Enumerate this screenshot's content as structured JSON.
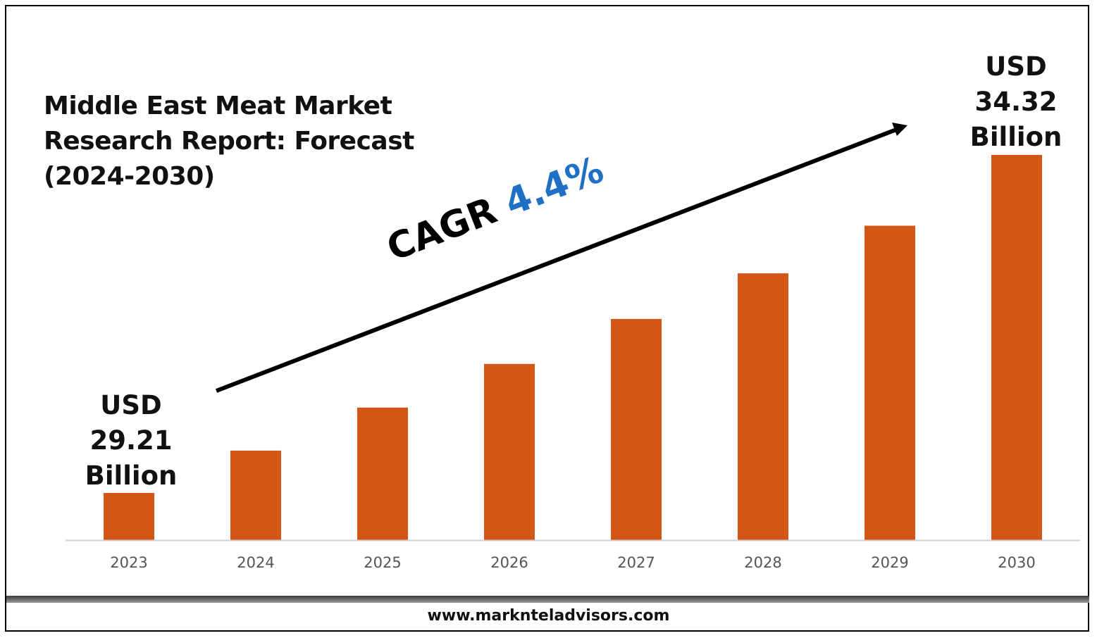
{
  "title_lines": [
    "Middle East Meat Market",
    "Research Report: Forecast",
    "(2024-2030)"
  ],
  "cagr": {
    "label": "CAGR",
    "value": "4.4%"
  },
  "start_callout": [
    "USD",
    "29.21",
    "Billion"
  ],
  "end_callout": [
    "USD",
    "34.32",
    "Billion"
  ],
  "footer": "www.marknteladvisors.com",
  "colors": {
    "bar": "#d45616",
    "cagr_value": "#1f6fc4",
    "axis": "#d0d0d0"
  },
  "chart_data": {
    "type": "bar",
    "categories": [
      "2023",
      "2024",
      "2025",
      "2026",
      "2027",
      "2028",
      "2029",
      "2030"
    ],
    "values": [
      29.21,
      29.85,
      30.5,
      31.16,
      31.84,
      32.53,
      33.25,
      34.32
    ],
    "unit": "USD Billion",
    "title": "Middle East Meat Market Research Report: Forecast (2024-2030)",
    "xlabel": "",
    "ylabel": "",
    "grid": false,
    "legend": "none"
  }
}
